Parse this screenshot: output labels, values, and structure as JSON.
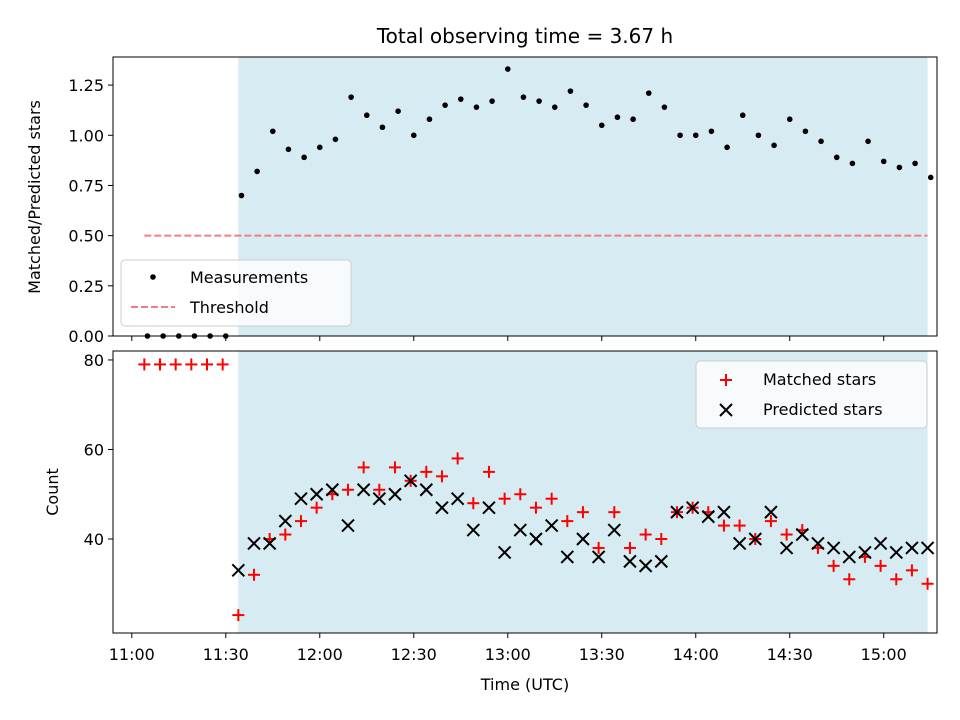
{
  "chart_data": [
    {
      "type": "scatter",
      "title": "Total observing time = 3.67 h",
      "ylabel": "Matched/Predicted stars",
      "xlabel": "",
      "xlim": [
        "10:54",
        "15:17"
      ],
      "ylim": [
        0,
        1.39
      ],
      "yticks": [
        "0.00",
        "0.25",
        "0.50",
        "0.75",
        "1.00",
        "1.25"
      ],
      "shaded_interval": [
        "11:34",
        "15:14"
      ],
      "grid": false,
      "legend": "lower-left",
      "series": [
        {
          "name": "Measurements",
          "style": "dot",
          "color": "#000000",
          "x": [
            "11:05",
            "11:10",
            "11:15",
            "11:20",
            "11:25",
            "11:30",
            "11:35",
            "11:40",
            "11:45",
            "11:50",
            "11:55",
            "12:00",
            "12:05",
            "12:10",
            "12:15",
            "12:20",
            "12:25",
            "12:30",
            "12:35",
            "12:40",
            "12:45",
            "12:50",
            "12:55",
            "13:00",
            "13:05",
            "13:10",
            "13:15",
            "13:20",
            "13:25",
            "13:30",
            "13:35",
            "13:40",
            "13:45",
            "13:50",
            "13:55",
            "14:00",
            "14:05",
            "14:10",
            "14:15",
            "14:20",
            "14:25",
            "14:30",
            "14:35",
            "14:40",
            "14:45",
            "14:50",
            "14:55",
            "15:00",
            "15:05",
            "15:10",
            "15:15"
          ],
          "y": [
            0,
            0,
            0,
            0,
            0,
            0,
            0.7,
            0.82,
            1.02,
            0.93,
            0.89,
            0.94,
            0.98,
            1.19,
            1.1,
            1.04,
            1.12,
            1.0,
            1.08,
            1.15,
            1.18,
            1.14,
            1.17,
            1.33,
            1.19,
            1.17,
            1.14,
            1.22,
            1.15,
            1.05,
            1.09,
            1.08,
            1.21,
            1.14,
            1.0,
            1.0,
            1.02,
            0.94,
            1.1,
            1.0,
            0.95,
            1.08,
            1.02,
            0.97,
            0.89,
            0.86,
            0.97,
            0.87,
            0.84,
            0.86,
            0.79
          ]
        },
        {
          "name": "Threshold",
          "style": "dashed-line",
          "color": "#f08080",
          "x": [
            "11:04",
            "15:14"
          ],
          "y": [
            0.5,
            0.5
          ]
        }
      ]
    },
    {
      "type": "scatter",
      "title": "",
      "xlabel": "Time (UTC)",
      "ylabel": "Count",
      "xlim": [
        "10:54",
        "15:17"
      ],
      "ylim": [
        19,
        82
      ],
      "xticks": [
        "11:00",
        "11:30",
        "12:00",
        "12:30",
        "13:00",
        "13:30",
        "14:00",
        "14:30",
        "15:00"
      ],
      "yticks": [
        "40",
        "60",
        "80"
      ],
      "shaded_interval": [
        "11:34",
        "15:14"
      ],
      "grid": false,
      "legend": "top-right",
      "series": [
        {
          "name": "Matched stars",
          "marker": "plus",
          "color": "#ff0000",
          "x": [
            "11:04",
            "11:09",
            "11:14",
            "11:19",
            "11:24",
            "11:29",
            "11:34",
            "11:39",
            "11:44",
            "11:49",
            "11:54",
            "11:59",
            "12:04",
            "12:09",
            "12:14",
            "12:19",
            "12:24",
            "12:29",
            "12:34",
            "12:39",
            "12:44",
            "12:49",
            "12:54",
            "12:59",
            "13:04",
            "13:09",
            "13:14",
            "13:19",
            "13:24",
            "13:29",
            "13:34",
            "13:39",
            "13:44",
            "13:49",
            "13:54",
            "13:59",
            "14:04",
            "14:09",
            "14:14",
            "14:19",
            "14:24",
            "14:29",
            "14:34",
            "14:39",
            "14:44",
            "14:49",
            "14:54",
            "14:59",
            "15:04",
            "15:09",
            "15:14"
          ],
          "y": [
            79,
            79,
            79,
            79,
            79,
            79,
            23,
            32,
            40,
            41,
            44,
            47,
            50,
            51,
            56,
            51,
            56,
            53,
            55,
            54,
            58,
            48,
            55,
            49,
            50,
            47,
            49,
            44,
            46,
            38,
            46,
            38,
            41,
            40,
            46,
            47,
            46,
            43,
            43,
            40,
            44,
            41,
            42,
            38,
            34,
            31,
            36,
            34,
            31,
            33,
            30
          ]
        },
        {
          "name": "Predicted stars",
          "marker": "x",
          "color": "#000000",
          "x": [
            "11:34",
            "11:39",
            "11:44",
            "11:49",
            "11:54",
            "11:59",
            "12:04",
            "12:09",
            "12:14",
            "12:19",
            "12:24",
            "12:29",
            "12:34",
            "12:39",
            "12:44",
            "12:49",
            "12:54",
            "12:59",
            "13:04",
            "13:09",
            "13:14",
            "13:19",
            "13:24",
            "13:29",
            "13:34",
            "13:39",
            "13:44",
            "13:49",
            "13:54",
            "13:59",
            "14:04",
            "14:09",
            "14:14",
            "14:19",
            "14:24",
            "14:29",
            "14:34",
            "14:39",
            "14:44",
            "14:49",
            "14:54",
            "14:59",
            "15:04",
            "15:09",
            "15:14"
          ],
          "y": [
            33,
            39,
            39,
            44,
            49,
            50,
            51,
            43,
            51,
            49,
            50,
            53,
            51,
            47,
            49,
            42,
            47,
            37,
            42,
            40,
            43,
            36,
            40,
            36,
            42,
            35,
            34,
            35,
            46,
            47,
            45,
            46,
            39,
            40,
            46,
            38,
            41,
            39,
            38,
            36,
            37,
            39,
            37,
            38,
            38
          ]
        }
      ]
    }
  ]
}
